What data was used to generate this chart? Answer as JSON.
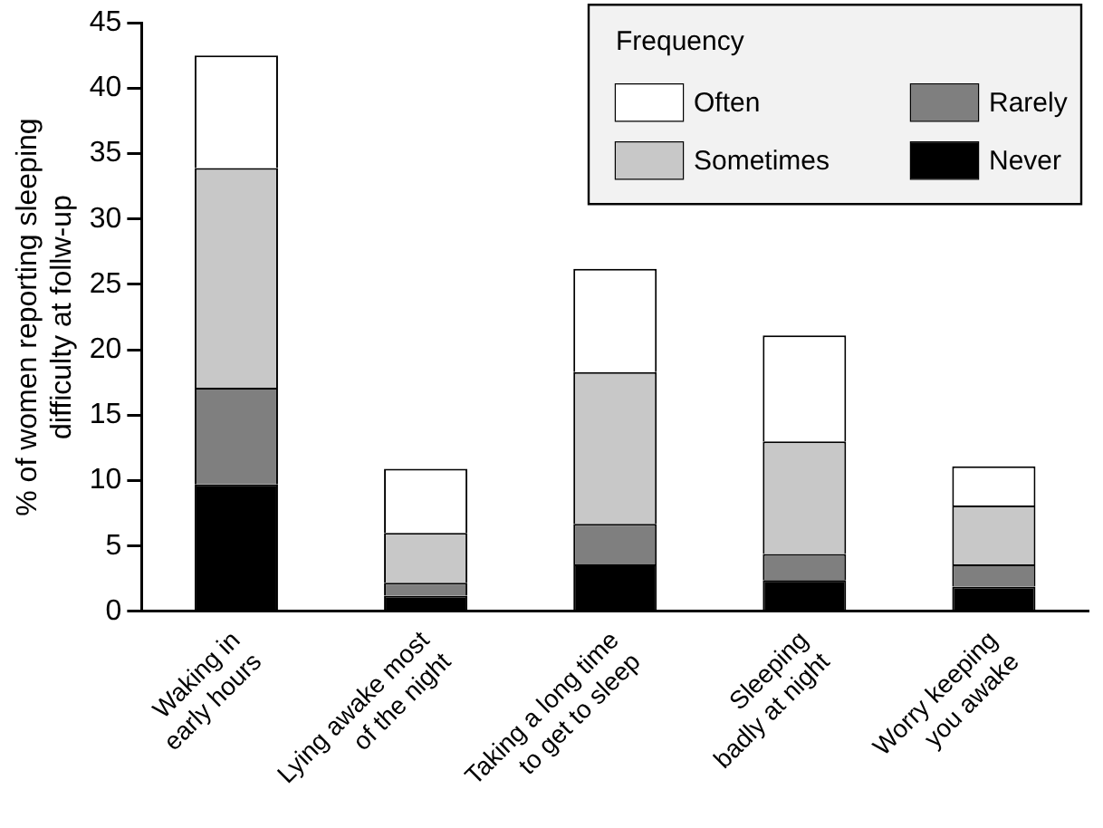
{
  "chart_data": {
    "type": "bar",
    "stacked": true,
    "ylabel": "% of women reporting sleeping difficulty at follw-up",
    "legend_title": "Frequency",
    "legend": "top right",
    "grid": false,
    "categories": [
      "Waking in early hours",
      "Lying awake most of the night",
      "Taking a long time to get to sleep",
      "Sleeping badly at night",
      "Worry keeping you awake"
    ],
    "ylim": [
      0,
      45
    ],
    "yticks": [
      0,
      5,
      10,
      15,
      20,
      25,
      30,
      35,
      40,
      45
    ],
    "series": [
      {
        "name": "Never",
        "color": "#000000",
        "values": [
          9.7,
          1.2,
          3.6,
          2.4,
          1.9
        ]
      },
      {
        "name": "Rarely",
        "color": "#7f7f7f",
        "values": [
          7.4,
          1.0,
          3.1,
          2.0,
          1.7
        ]
      },
      {
        "name": "Sometimes",
        "color": "#c8c8c8",
        "values": [
          16.8,
          3.8,
          11.6,
          8.6,
          4.5
        ]
      },
      {
        "name": "Often",
        "color": "#ffffff",
        "values": [
          8.6,
          4.9,
          7.9,
          8.1,
          3.0
        ]
      }
    ]
  }
}
